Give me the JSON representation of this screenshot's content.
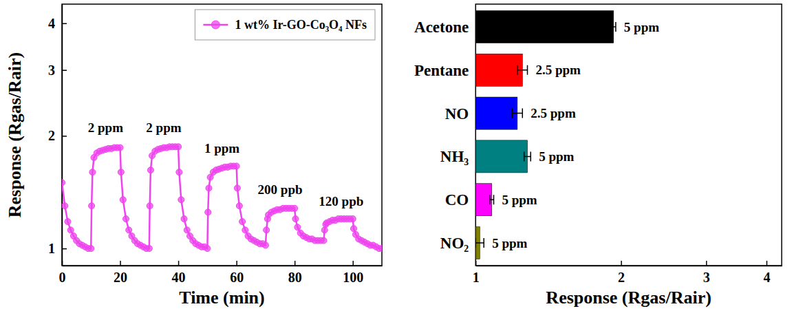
{
  "chart_data": [
    {
      "type": "line",
      "xlabel": "Time (min)",
      "ylabel": "Response (Rgas/Rair)",
      "log": "y",
      "xlim": [
        0,
        110
      ],
      "xticks": [
        0,
        20,
        40,
        60,
        80,
        100
      ],
      "ylim": [
        0.9,
        4.5
      ],
      "yticks": [
        1,
        2,
        3,
        4
      ],
      "legend": "upper right",
      "series": [
        {
          "name": "1 wt% Ir-GO-Co₃O₄ NFs",
          "color": "#ee44ee",
          "marker": "circle",
          "x": [
            0,
            1,
            2,
            3,
            4,
            5,
            6,
            7,
            8,
            9,
            10,
            10.2,
            10.5,
            11,
            12,
            13,
            14,
            15,
            16,
            17,
            18,
            19,
            20,
            20.3,
            21,
            22,
            23,
            24,
            25,
            26,
            27,
            28,
            29,
            30,
            30.2,
            30.5,
            31,
            32,
            33,
            34,
            35,
            36,
            37,
            38,
            39,
            40,
            40.3,
            41,
            42,
            43,
            44,
            45,
            46,
            47,
            48,
            49,
            50,
            50.2,
            50.5,
            51,
            52,
            53,
            54,
            55,
            56,
            57,
            58,
            59,
            60,
            60.3,
            61,
            62,
            63,
            64,
            65,
            66,
            67,
            68,
            69,
            70,
            70.3,
            70.7,
            71,
            72,
            73,
            74,
            75,
            76,
            77,
            78,
            79,
            80,
            80.3,
            81,
            82,
            83,
            84,
            85,
            86,
            87,
            88,
            89,
            90,
            90.3,
            90.7,
            91,
            92,
            93,
            94,
            95,
            96,
            97,
            98,
            99,
            100,
            100.3,
            101,
            102,
            103,
            104,
            105,
            106,
            107,
            108,
            109,
            110
          ],
          "values": [
            1.5,
            1.3,
            1.18,
            1.12,
            1.08,
            1.05,
            1.03,
            1.02,
            1.01,
            1.0,
            1.0,
            1.3,
            1.6,
            1.75,
            1.8,
            1.82,
            1.83,
            1.84,
            1.85,
            1.85,
            1.86,
            1.86,
            1.86,
            1.6,
            1.35,
            1.2,
            1.12,
            1.08,
            1.05,
            1.03,
            1.02,
            1.01,
            1.0,
            1.0,
            1.3,
            1.62,
            1.77,
            1.82,
            1.84,
            1.85,
            1.86,
            1.86,
            1.87,
            1.87,
            1.87,
            1.87,
            1.6,
            1.35,
            1.2,
            1.12,
            1.08,
            1.05,
            1.03,
            1.02,
            1.01,
            1.01,
            1.0,
            1.25,
            1.45,
            1.55,
            1.6,
            1.62,
            1.63,
            1.64,
            1.65,
            1.65,
            1.66,
            1.66,
            1.66,
            1.45,
            1.3,
            1.18,
            1.12,
            1.08,
            1.06,
            1.05,
            1.04,
            1.03,
            1.03,
            1.02,
            1.12,
            1.2,
            1.23,
            1.25,
            1.26,
            1.27,
            1.27,
            1.28,
            1.28,
            1.28,
            1.28,
            1.28,
            1.2,
            1.14,
            1.1,
            1.08,
            1.07,
            1.06,
            1.06,
            1.05,
            1.05,
            1.05,
            1.05,
            1.12,
            1.16,
            1.17,
            1.18,
            1.19,
            1.19,
            1.2,
            1.2,
            1.2,
            1.2,
            1.2,
            1.2,
            1.13,
            1.09,
            1.06,
            1.05,
            1.04,
            1.03,
            1.02,
            1.02,
            1.01,
            1.0,
            1.0
          ]
        }
      ],
      "annotations": [
        {
          "text": "2 ppm",
          "x": 15,
          "y": 2.05
        },
        {
          "text": "2 ppm",
          "x": 35,
          "y": 2.05
        },
        {
          "text": "1 ppm",
          "x": 55,
          "y": 1.8
        },
        {
          "text": "200 ppb",
          "x": 75,
          "y": 1.4
        },
        {
          "text": "120 ppb",
          "x": 96,
          "y": 1.3
        }
      ]
    },
    {
      "type": "bar",
      "orientation": "horizontal",
      "log": "x",
      "xlabel": "Response (Rgas/Rair)",
      "xlim": [
        1,
        4.3
      ],
      "xticks": [
        1,
        2,
        3,
        4
      ],
      "categories": [
        "Acetone",
        "Pentane",
        "NO",
        "NH₃",
        "CO",
        "NO₂"
      ],
      "values": [
        1.93,
        1.25,
        1.22,
        1.28,
        1.08,
        1.02
      ],
      "errors": [
        0.02,
        0.03,
        0.03,
        0.02,
        0.01,
        0.02
      ],
      "colors": [
        "#000000",
        "#ff0000",
        "#0000ff",
        "#008080",
        "#ff00ff",
        "#808000"
      ],
      "concentrations": [
        "5 ppm",
        "2.5 ppm",
        "2.5 ppm",
        "5 ppm",
        "5 ppm",
        "5 ppm"
      ]
    }
  ]
}
